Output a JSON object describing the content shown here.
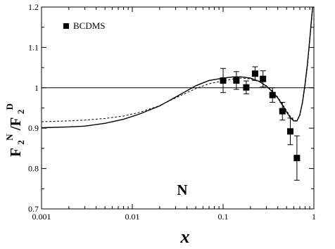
{
  "chart_data": {
    "type": "scatter",
    "xscale": "log",
    "xlim": [
      0.001,
      1
    ],
    "ylim": [
      0.7,
      1.2
    ],
    "xlabel": "x",
    "ylabel": {
      "base1": "F",
      "sub1": "2",
      "sup1": "N",
      "slash": "/F",
      "sub2": "2",
      "sup2": "D"
    },
    "xticks": [
      {
        "value": 0.001,
        "label": "0.001"
      },
      {
        "value": 0.01,
        "label": "0.01"
      },
      {
        "value": 0.1,
        "label": "0.1"
      },
      {
        "value": 1,
        "label": "1"
      }
    ],
    "yticks": [
      {
        "value": 0.7,
        "label": "0.7"
      },
      {
        "value": 0.8,
        "label": "0.8"
      },
      {
        "value": 0.9,
        "label": "0.9"
      },
      {
        "value": 1.0,
        "label": "1"
      },
      {
        "value": 1.1,
        "label": "1.1"
      },
      {
        "value": 1.2,
        "label": "1.2"
      }
    ],
    "reference_line": 1.0,
    "legend": {
      "placement": "top-left",
      "entries": [
        {
          "name": "BCDMS",
          "marker": "square"
        }
      ]
    },
    "annotation": "N",
    "series": [
      {
        "name": "BCDMS",
        "kind": "points",
        "marker": "square",
        "color": "#000000",
        "x": [
          0.1,
          0.14,
          0.18,
          0.225,
          0.275,
          0.35,
          0.45,
          0.55,
          0.65
        ],
        "y": [
          1.018,
          1.018,
          1.001,
          1.035,
          1.022,
          0.982,
          0.942,
          0.892,
          0.826
        ],
        "yerr": [
          0.03,
          0.022,
          0.016,
          0.017,
          0.02,
          0.018,
          0.022,
          0.033,
          0.055
        ]
      },
      {
        "kind": "line",
        "style": "solid",
        "color": "#000000",
        "x": [
          0.001,
          0.002,
          0.003,
          0.005,
          0.008,
          0.012,
          0.02,
          0.03,
          0.05,
          0.07,
          0.1,
          0.13,
          0.16,
          0.2,
          0.25,
          0.3,
          0.35,
          0.4,
          0.45,
          0.5,
          0.55,
          0.6,
          0.65,
          0.7,
          0.75,
          0.8,
          0.85,
          0.9,
          0.95,
          0.97,
          0.99
        ],
        "y": [
          0.901,
          0.903,
          0.905,
          0.912,
          0.922,
          0.935,
          0.955,
          0.977,
          1.005,
          1.018,
          1.024,
          1.027,
          1.027,
          1.024,
          1.016,
          1.004,
          0.99,
          0.975,
          0.957,
          0.94,
          0.926,
          0.918,
          0.918,
          0.933,
          0.965,
          1.01,
          1.06,
          1.12,
          1.18,
          1.2,
          1.2
        ]
      },
      {
        "kind": "line",
        "style": "dashed",
        "color": "#000000",
        "x": [
          0.001,
          0.002,
          0.003,
          0.005,
          0.008,
          0.012,
          0.02,
          0.03,
          0.05,
          0.07,
          0.1,
          0.13,
          0.16,
          0.2,
          0.25,
          0.3,
          0.35,
          0.4,
          0.45,
          0.5,
          0.55,
          0.6,
          0.65,
          0.7,
          0.75,
          0.8,
          0.85,
          0.9,
          0.95,
          0.97,
          0.99
        ],
        "y": [
          0.916,
          0.918,
          0.92,
          0.924,
          0.93,
          0.939,
          0.956,
          0.975,
          0.998,
          1.01,
          1.017,
          1.022,
          1.024,
          1.022,
          1.015,
          1.005,
          0.992,
          0.977,
          0.96,
          0.943,
          0.929,
          0.92,
          0.918,
          0.931,
          0.962,
          1.005,
          1.055,
          1.115,
          1.175,
          1.2,
          1.2
        ]
      }
    ]
  }
}
